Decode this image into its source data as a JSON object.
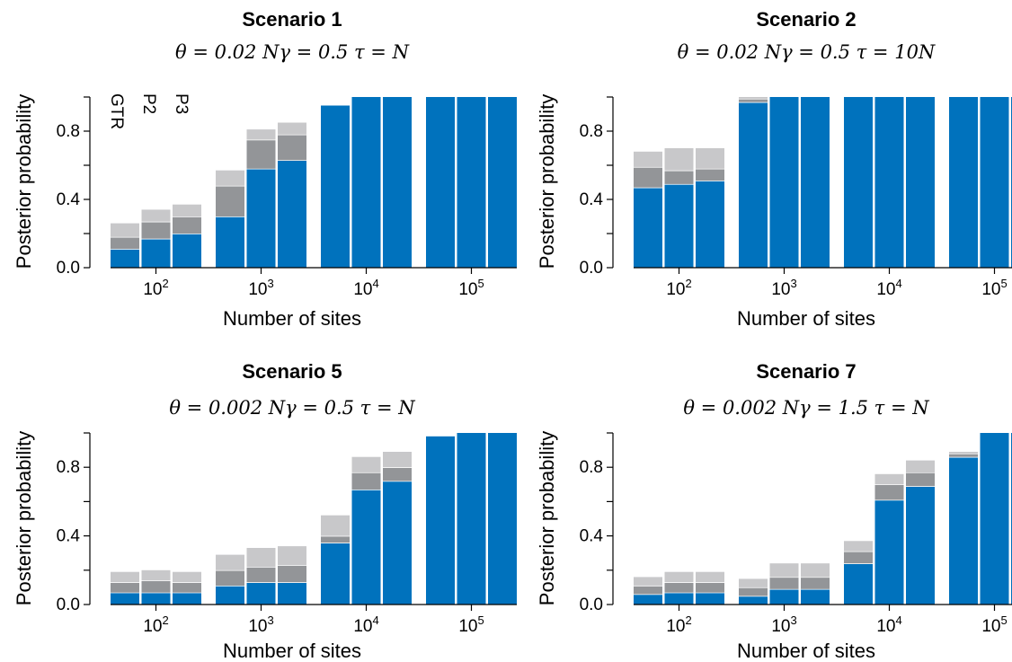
{
  "chart_data": [
    {
      "type": "bar",
      "title": "Scenario 1",
      "subtitle": "θ = 0.02 Nγ = 0.5 τ = N",
      "xlabel": "Number of sites",
      "ylabel": "Posterior probability",
      "ylim": [
        0,
        1
      ],
      "yticks": [
        "0.0",
        "0.4",
        "0.8"
      ],
      "xgroups": [
        "10|2",
        "10|3",
        "10|4",
        "10|5"
      ],
      "stack_series": [
        "GTR",
        "P2",
        "P3"
      ],
      "colors": {
        "GTR": "#0072bd",
        "P2": "#939598",
        "P3": "#c8c8ca"
      },
      "legend_labels": [
        "GTR",
        "P2",
        "P3"
      ],
      "bars": [
        [
          0.11,
          0.07,
          0.08
        ],
        [
          0.17,
          0.1,
          0.07
        ],
        [
          0.2,
          0.1,
          0.07
        ],
        [
          0.3,
          0.18,
          0.09
        ],
        [
          0.58,
          0.17,
          0.06
        ],
        [
          0.63,
          0.15,
          0.07
        ],
        [
          0.95,
          0.0,
          0.0
        ],
        [
          1.0,
          0.0,
          0.0
        ],
        [
          1.0,
          0.0,
          0.0
        ],
        [
          1.0,
          0.0,
          0.0
        ],
        [
          1.0,
          0.0,
          0.0
        ],
        [
          1.0,
          0.0,
          0.0
        ]
      ]
    },
    {
      "type": "bar",
      "title": "Scenario 2",
      "subtitle": "θ = 0.02 Nγ = 0.5 τ = 10N",
      "xlabel": "Number of sites",
      "ylabel": "Posterior probability",
      "ylim": [
        0,
        1
      ],
      "yticks": [
        "0.0",
        "0.4",
        "0.8"
      ],
      "xgroups": [
        "10|2",
        "10|3",
        "10|4",
        "10|5"
      ],
      "stack_series": [
        "GTR",
        "P2",
        "P3"
      ],
      "colors": {
        "GTR": "#0072bd",
        "P2": "#939598",
        "P3": "#c8c8ca"
      },
      "bars": [
        [
          0.47,
          0.12,
          0.09
        ],
        [
          0.49,
          0.08,
          0.13
        ],
        [
          0.51,
          0.07,
          0.12
        ],
        [
          0.97,
          0.02,
          0.01
        ],
        [
          1.0,
          0.0,
          0.0
        ],
        [
          1.0,
          0.0,
          0.0
        ],
        [
          1.0,
          0.0,
          0.0
        ],
        [
          1.0,
          0.0,
          0.0
        ],
        [
          1.0,
          0.0,
          0.0
        ],
        [
          1.0,
          0.0,
          0.0
        ],
        [
          1.0,
          0.0,
          0.0
        ],
        [
          1.0,
          0.0,
          0.0
        ]
      ]
    },
    {
      "type": "bar",
      "title": "Scenario 5",
      "subtitle": "θ = 0.002 Nγ = 0.5 τ = N",
      "xlabel": "Number of sites",
      "ylabel": "Posterior probability",
      "ylim": [
        0,
        1
      ],
      "yticks": [
        "0.0",
        "0.4",
        "0.8"
      ],
      "xgroups": [
        "10|2",
        "10|3",
        "10|4",
        "10|5"
      ],
      "stack_series": [
        "GTR",
        "P2",
        "P3"
      ],
      "colors": {
        "GTR": "#0072bd",
        "P2": "#939598",
        "P3": "#c8c8ca"
      },
      "bars": [
        [
          0.07,
          0.06,
          0.06
        ],
        [
          0.07,
          0.07,
          0.06
        ],
        [
          0.07,
          0.06,
          0.06
        ],
        [
          0.11,
          0.09,
          0.09
        ],
        [
          0.13,
          0.09,
          0.11
        ],
        [
          0.13,
          0.1,
          0.11
        ],
        [
          0.36,
          0.04,
          0.12
        ],
        [
          0.67,
          0.1,
          0.09
        ],
        [
          0.72,
          0.08,
          0.09
        ],
        [
          0.98,
          0.0,
          0.0
        ],
        [
          1.0,
          0.0,
          0.0
        ],
        [
          1.0,
          0.0,
          0.0
        ]
      ]
    },
    {
      "type": "bar",
      "title": "Scenario 7",
      "subtitle": "θ = 0.002 Nγ = 1.5 τ = N",
      "xlabel": "Number of sites",
      "ylabel": "Posterior probability",
      "ylim": [
        0,
        1
      ],
      "yticks": [
        "0.0",
        "0.4",
        "0.8"
      ],
      "xgroups": [
        "10|2",
        "10|3",
        "10|4",
        "10|5"
      ],
      "stack_series": [
        "GTR",
        "P2",
        "P3"
      ],
      "colors": {
        "GTR": "#0072bd",
        "P2": "#939598",
        "P3": "#c8c8ca"
      },
      "bars": [
        [
          0.06,
          0.05,
          0.05
        ],
        [
          0.07,
          0.06,
          0.06
        ],
        [
          0.07,
          0.06,
          0.06
        ],
        [
          0.05,
          0.05,
          0.05
        ],
        [
          0.09,
          0.07,
          0.08
        ],
        [
          0.09,
          0.07,
          0.08
        ],
        [
          0.24,
          0.07,
          0.06
        ],
        [
          0.61,
          0.09,
          0.06
        ],
        [
          0.69,
          0.08,
          0.07
        ],
        [
          0.86,
          0.02,
          0.01
        ],
        [
          1.0,
          0.0,
          0.0
        ],
        [
          1.0,
          0.0,
          0.0
        ]
      ]
    }
  ]
}
